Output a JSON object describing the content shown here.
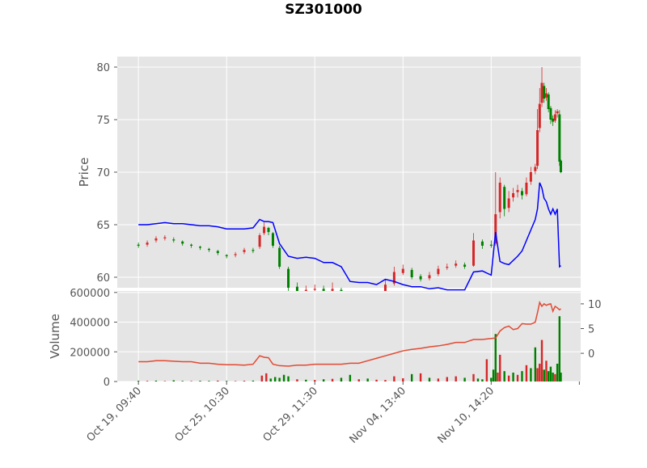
{
  "chart_data": {
    "type": "line",
    "title": "SZ301000",
    "x_tick_labels": [
      "Oct 19, 09:40",
      "Oct 25, 10:30",
      "Oct 29, 11:30",
      "Nov 04, 13:40",
      "Nov 10, 14:20"
    ],
    "x_tick_positions": [
      0,
      200,
      400,
      600,
      800
    ],
    "x_range": [
      -48,
      1003
    ],
    "grid": true,
    "price_panel": {
      "ylabel": "Price",
      "ylim": [
        59,
        81
      ],
      "y_ticks": [
        60,
        65,
        70,
        75,
        80
      ],
      "y_tick_labels": [
        "60",
        "65",
        "70",
        "75",
        "80"
      ],
      "series": [
        {
          "kind": "candlestick",
          "up_color": "#d62728",
          "down_color": "#008000",
          "x": [
            0,
            20,
            40,
            60,
            80,
            100,
            120,
            140,
            160,
            180,
            200,
            220,
            240,
            260,
            275,
            285,
            295,
            305,
            320,
            340,
            360,
            380,
            400,
            420,
            440,
            460,
            480,
            500,
            520,
            540,
            560,
            580,
            600,
            620,
            640,
            660,
            680,
            700,
            720,
            740,
            760,
            780,
            800,
            810,
            820,
            830,
            840,
            850,
            860,
            870,
            880,
            890,
            900,
            905,
            910,
            915,
            920,
            925,
            930,
            935,
            940,
            945,
            950,
            955,
            958
          ],
          "close": [
            63.0,
            63.3,
            63.7,
            63.8,
            63.5,
            63.2,
            63.0,
            62.8,
            62.6,
            62.3,
            62.0,
            62.2,
            62.6,
            62.5,
            64.0,
            64.8,
            64.3,
            63.0,
            61.0,
            59.0,
            58.5,
            58.8,
            58.9,
            58.7,
            58.9,
            58.4,
            57.8,
            57.9,
            57.8,
            58.3,
            59.3,
            60.5,
            60.8,
            60.0,
            59.8,
            60.2,
            60.8,
            61.0,
            61.3,
            61.0,
            63.5,
            63.0,
            63.0,
            66.0,
            69.0,
            66.5,
            67.5,
            68.0,
            68.3,
            67.8,
            69.0,
            70.0,
            70.5,
            74.0,
            76.5,
            78.5,
            77.0,
            77.5,
            76.0,
            75.0,
            74.8,
            75.5,
            75.8,
            71.0,
            70.0
          ],
          "open": [
            63.1,
            63.1,
            63.5,
            63.7,
            63.6,
            63.4,
            63.1,
            62.9,
            62.7,
            62.5,
            62.1,
            62.1,
            62.4,
            62.6,
            62.9,
            64.2,
            64.7,
            64.2,
            62.8,
            60.8,
            59.1,
            58.6,
            58.8,
            58.9,
            58.7,
            58.8,
            58.3,
            57.8,
            57.9,
            57.9,
            58.4,
            59.4,
            60.4,
            60.7,
            60.1,
            59.9,
            60.3,
            60.9,
            61.1,
            61.2,
            61.1,
            63.4,
            63.1,
            63.2,
            66.2,
            68.6,
            66.6,
            67.6,
            68.1,
            68.2,
            67.9,
            69.1,
            70.1,
            70.6,
            74.2,
            76.6,
            78.2,
            77.1,
            77.4,
            76.1,
            75.1,
            74.9,
            75.6,
            75.5,
            71.1
          ],
          "high": [
            63.3,
            63.5,
            63.9,
            64.0,
            63.8,
            63.5,
            63.2,
            63.0,
            62.8,
            62.6,
            62.2,
            62.4,
            62.8,
            62.8,
            64.2,
            65.2,
            64.8,
            64.3,
            63.0,
            61.0,
            59.5,
            59.2,
            59.3,
            59.2,
            59.5,
            59.0,
            58.5,
            58.2,
            58.2,
            58.6,
            59.8,
            61.0,
            61.2,
            60.9,
            60.3,
            60.5,
            61.1,
            61.3,
            61.6,
            61.4,
            64.2,
            63.6,
            63.5,
            70.0,
            69.5,
            68.8,
            68.2,
            68.5,
            68.8,
            68.5,
            69.5,
            70.5,
            70.8,
            76.0,
            78.0,
            80.0,
            78.5,
            78.0,
            77.6,
            76.3,
            75.4,
            75.9,
            76.0,
            75.9,
            71.2
          ],
          "low": [
            62.8,
            62.9,
            63.3,
            63.5,
            63.3,
            63.0,
            62.8,
            62.6,
            62.4,
            62.1,
            61.8,
            61.9,
            62.2,
            62.3,
            62.7,
            64.0,
            64.0,
            62.8,
            60.8,
            58.7,
            58.2,
            58.3,
            58.6,
            58.4,
            58.5,
            58.1,
            57.3,
            57.5,
            57.6,
            57.7,
            58.2,
            59.2,
            60.2,
            59.8,
            59.6,
            59.7,
            60.1,
            60.7,
            60.9,
            60.8,
            61.0,
            62.7,
            62.8,
            63.0,
            65.6,
            65.8,
            66.2,
            67.2,
            67.6,
            67.4,
            67.7,
            68.8,
            69.8,
            70.3,
            73.8,
            76.2,
            76.6,
            76.8,
            75.7,
            74.6,
            74.4,
            74.7,
            75.2,
            70.6,
            69.9
          ]
        },
        {
          "name": "",
          "color": "#0000ff",
          "x": [
            0,
            20,
            40,
            60,
            80,
            100,
            120,
            140,
            160,
            180,
            200,
            220,
            240,
            260,
            275,
            285,
            295,
            305,
            320,
            340,
            360,
            380,
            400,
            420,
            440,
            460,
            480,
            500,
            520,
            540,
            560,
            580,
            600,
            620,
            640,
            660,
            680,
            700,
            720,
            740,
            760,
            780,
            800,
            810,
            820,
            830,
            840,
            850,
            860,
            870,
            880,
            890,
            900,
            905,
            910,
            915,
            920,
            925,
            930,
            935,
            940,
            945,
            950,
            955,
            958
          ],
          "y": [
            65.0,
            65.0,
            65.1,
            65.2,
            65.1,
            65.1,
            65.0,
            64.9,
            64.9,
            64.8,
            64.6,
            64.6,
            64.6,
            64.7,
            65.5,
            65.3,
            65.3,
            65.2,
            63.2,
            62.0,
            61.8,
            61.9,
            61.8,
            61.4,
            61.4,
            61.0,
            59.6,
            59.5,
            59.5,
            59.3,
            59.8,
            59.6,
            59.3,
            59.1,
            59.1,
            58.9,
            59.0,
            58.8,
            58.8,
            58.8,
            60.5,
            60.6,
            60.2,
            64.3,
            61.5,
            61.3,
            61.2,
            61.6,
            62.0,
            62.5,
            63.5,
            64.5,
            65.5,
            66.5,
            69.0,
            68.5,
            67.5,
            67.2,
            66.5,
            66.0,
            66.5,
            66.0,
            66.5,
            61.0,
            61.1
          ]
        }
      ]
    },
    "volume_panel": {
      "ylabel": "Volume",
      "ylim": [
        0,
        610000
      ],
      "y_ticks": [
        0,
        200000,
        400000,
        600000
      ],
      "y_tick_labels": [
        "0",
        "200000",
        "400000",
        "600000"
      ],
      "bars": {
        "x": [
          0,
          20,
          40,
          60,
          80,
          100,
          120,
          140,
          160,
          180,
          200,
          220,
          240,
          260,
          280,
          290,
          300,
          310,
          320,
          330,
          340,
          360,
          380,
          400,
          420,
          440,
          460,
          480,
          500,
          520,
          540,
          560,
          580,
          600,
          620,
          640,
          660,
          680,
          700,
          720,
          740,
          760,
          770,
          780,
          790,
          800,
          805,
          810,
          815,
          820,
          830,
          840,
          850,
          860,
          870,
          880,
          890,
          900,
          905,
          910,
          915,
          920,
          925,
          930,
          935,
          940,
          945,
          950,
          955,
          958
        ],
        "values": [
          5000,
          4000,
          6000,
          3000,
          8000,
          4000,
          3000,
          5000,
          4000,
          6000,
          4000,
          3000,
          5000,
          6000,
          40000,
          55000,
          20000,
          30000,
          25000,
          45000,
          35000,
          15000,
          12000,
          10000,
          15000,
          18000,
          25000,
          45000,
          15000,
          20000,
          12000,
          10000,
          35000,
          22000,
          50000,
          55000,
          25000,
          20000,
          30000,
          35000,
          25000,
          50000,
          20000,
          15000,
          150000,
          25000,
          80000,
          320000,
          60000,
          180000,
          70000,
          40000,
          60000,
          45000,
          70000,
          110000,
          90000,
          230000,
          90000,
          120000,
          280000,
          80000,
          140000,
          70000,
          100000,
          60000,
          50000,
          120000,
          440000,
          60000
        ],
        "colors": [
          "#008000",
          "#d62728",
          "#008000",
          "#d62728",
          "#008000",
          "#008000",
          "#d62728",
          "#008000",
          "#008000",
          "#d62728",
          "#008000",
          "#d62728",
          "#d62728",
          "#008000",
          "#d62728",
          "#d62728",
          "#008000",
          "#008000",
          "#008000",
          "#008000",
          "#008000",
          "#d62728",
          "#008000",
          "#d62728",
          "#008000",
          "#d62728",
          "#008000",
          "#008000",
          "#d62728",
          "#008000",
          "#d62728",
          "#d62728",
          "#d62728",
          "#d62728",
          "#008000",
          "#d62728",
          "#008000",
          "#d62728",
          "#d62728",
          "#d62728",
          "#008000",
          "#d62728",
          "#008000",
          "#008000",
          "#d62728",
          "#008000",
          "#008000",
          "#008000",
          "#d62728",
          "#d62728",
          "#008000",
          "#d62728",
          "#008000",
          "#d62728",
          "#008000",
          "#d62728",
          "#008000",
          "#008000",
          "#d62728",
          "#d62728",
          "#d62728",
          "#008000",
          "#d62728",
          "#008000",
          "#008000",
          "#008000",
          "#d62728",
          "#008000",
          "#008000",
          "#008000"
        ]
      },
      "secondary_axis": {
        "ylim": [
          -5.7,
          12.6
        ],
        "y_ticks": [
          0,
          5,
          10
        ],
        "y_tick_labels": [
          "0",
          "5",
          "10"
        ],
        "series": [
          {
            "name": "",
            "color": "#e24a33",
            "x": [
              0,
              20,
              40,
              60,
              80,
              100,
              120,
              140,
              160,
              180,
              200,
              220,
              240,
              260,
              275,
              285,
              295,
              305,
              320,
              340,
              360,
              380,
              400,
              420,
              440,
              460,
              480,
              500,
              520,
              540,
              560,
              580,
              600,
              620,
              640,
              660,
              680,
              700,
              720,
              740,
              760,
              780,
              800,
              810,
              820,
              830,
              840,
              850,
              860,
              870,
              880,
              890,
              900,
              905,
              910,
              915,
              920,
              925,
              930,
              935,
              940,
              945,
              950,
              955,
              958
            ],
            "y": [
              -1.7,
              -1.7,
              -1.5,
              -1.5,
              -1.6,
              -1.7,
              -1.7,
              -2.0,
              -2.0,
              -2.2,
              -2.3,
              -2.3,
              -2.4,
              -2.2,
              -0.5,
              -0.8,
              -0.9,
              -2.2,
              -2.5,
              -2.6,
              -2.4,
              -2.4,
              -2.2,
              -2.2,
              -2.2,
              -2.2,
              -2.0,
              -2.0,
              -1.5,
              -1.0,
              -0.5,
              0.0,
              0.5,
              0.8,
              1.0,
              1.3,
              1.5,
              1.8,
              2.2,
              2.2,
              2.8,
              2.8,
              3.0,
              3.1,
              4.5,
              5.2,
              5.5,
              4.8,
              5.0,
              6.0,
              5.9,
              5.9,
              6.3,
              8.2,
              10.3,
              9.5,
              10.0,
              9.7,
              9.9,
              10.0,
              8.5,
              9.5,
              9.2,
              8.8,
              9.0
            ]
          }
        ]
      }
    }
  }
}
